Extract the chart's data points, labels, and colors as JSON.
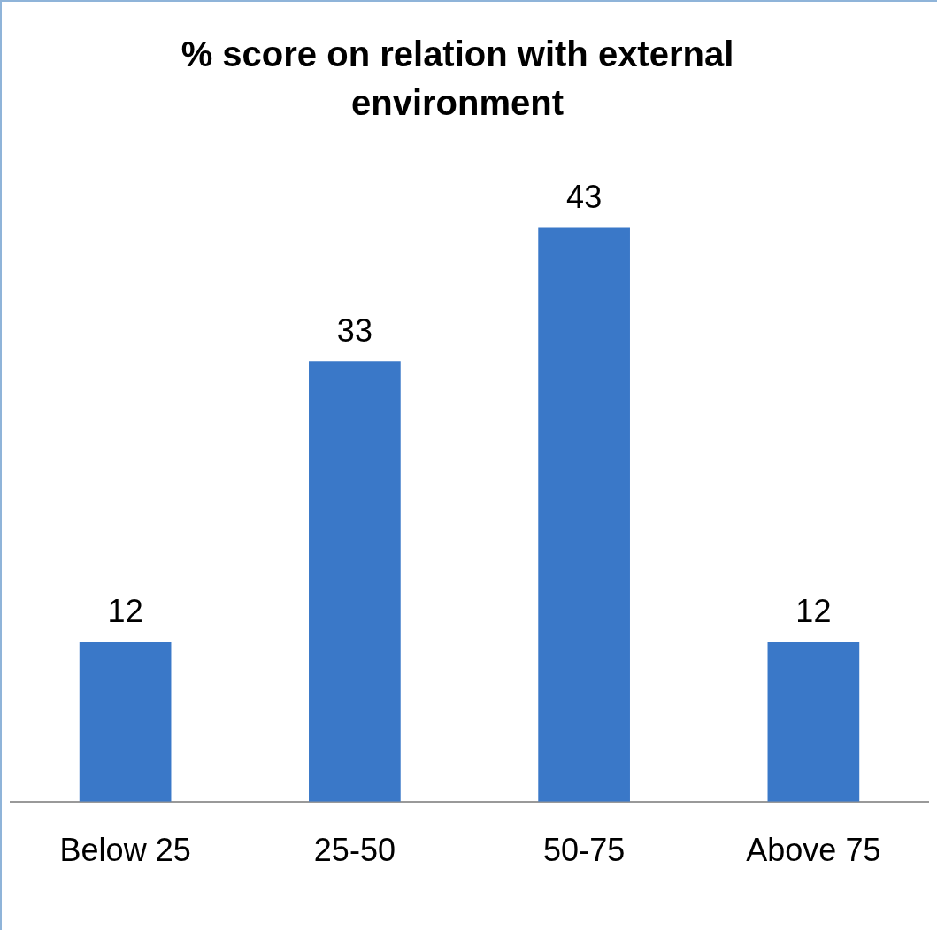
{
  "chart_data": {
    "type": "bar",
    "title": "% score on relation with external environment",
    "categories": [
      "Below 25",
      "25-50",
      "50-75",
      "Above 75"
    ],
    "values": [
      12,
      33,
      43,
      12
    ],
    "color": "#3a78c8",
    "tick_labels": "x",
    "grid": false,
    "legend": false,
    "data_labels": true
  }
}
